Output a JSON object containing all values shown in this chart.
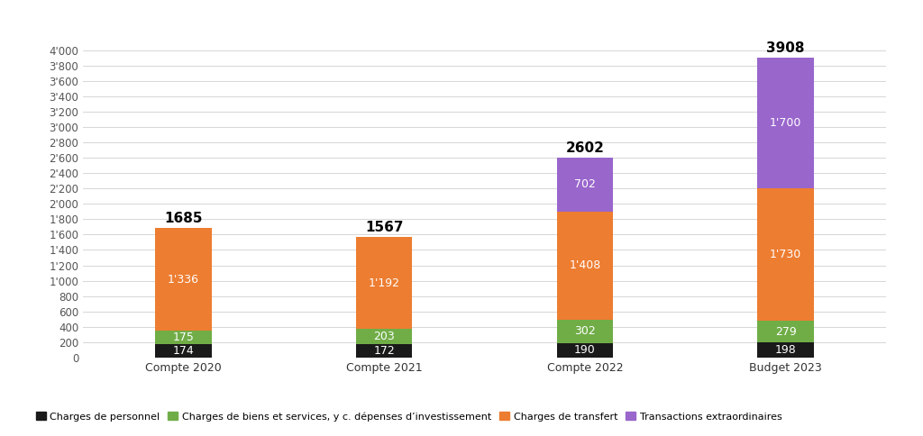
{
  "categories": [
    "Compte 2020",
    "Compte 2021",
    "Compte 2022",
    "Budget 2023"
  ],
  "totals": [
    "1685",
    "1567",
    "2602",
    "3908"
  ],
  "series": {
    "Charges de personnel": {
      "values": [
        174,
        172,
        190,
        198
      ],
      "color": "#1a1a1a"
    },
    "Charges de biens et services, y c. dépenses d’investissement": {
      "values": [
        175,
        203,
        302,
        279
      ],
      "color": "#70ad47"
    },
    "Charges de transfert": {
      "values": [
        1336,
        1192,
        1408,
        1730
      ],
      "color": "#ed7d31"
    },
    "Transactions extraordinaires": {
      "values": [
        0,
        0,
        702,
        1700
      ],
      "color": "#9966cc"
    }
  },
  "ylim": [
    0,
    4200
  ],
  "yticks": [
    0,
    200,
    400,
    600,
    800,
    1000,
    1200,
    1400,
    1600,
    1800,
    2000,
    2200,
    2400,
    2600,
    2800,
    3000,
    3200,
    3400,
    3600,
    3800,
    4000
  ],
  "ytick_labels": [
    "0",
    "200",
    "400",
    "600",
    "800",
    "1'000",
    "1'200",
    "1'400",
    "1'600",
    "1'800",
    "2'000",
    "2'200",
    "2'400",
    "2'600",
    "2'800",
    "3'000",
    "3'200",
    "3'400",
    "3'600",
    "3'800",
    "4'000"
  ],
  "background_color": "#ffffff",
  "bar_width": 0.28,
  "legend_labels": [
    "Charges de personnel",
    "Charges de biens et services, y c. dépenses d’investissement",
    "Charges de transfert",
    "Transactions extraordinaires"
  ],
  "segment_labels": {
    "Charges de personnel": [
      "174",
      "172",
      "190",
      "198"
    ],
    "Charges de biens et services, y c. dépenses d’investissement": [
      "175",
      "203",
      "302",
      "279"
    ],
    "Charges de transfert": [
      "1'336",
      "1'192",
      "1'408",
      "1'730"
    ],
    "Transactions extraordinaires": [
      "",
      "",
      "702",
      "1'700"
    ]
  }
}
